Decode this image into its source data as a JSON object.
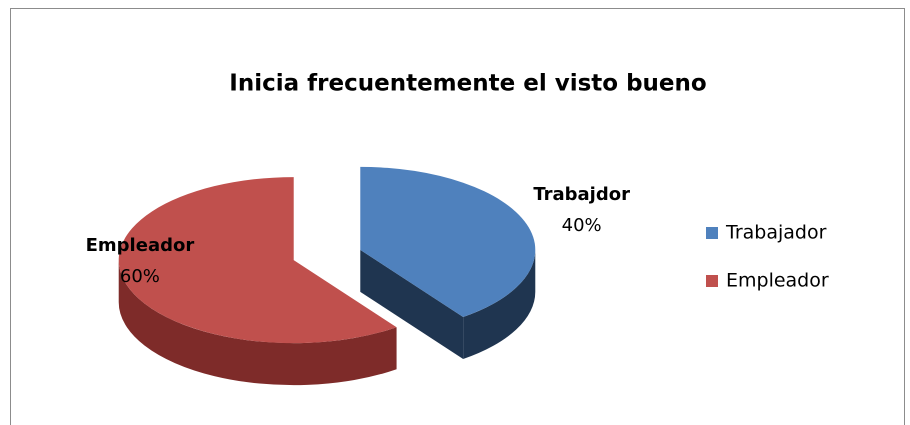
{
  "chart_data": {
    "type": "pie",
    "title": "Inicia frecuentemente el visto bueno",
    "categories": [
      "Trabajador",
      "Empleador"
    ],
    "values": [
      40,
      60
    ],
    "value_labels": [
      "40%",
      "60%"
    ],
    "data_labels": [
      "Trabajdor",
      "Empleador"
    ],
    "colors": [
      "#4f81bd",
      "#c0504d"
    ],
    "side_colors": [
      "#1f3550",
      "#7e2b29"
    ],
    "legend": "right",
    "three_d": true,
    "exploded": true
  }
}
